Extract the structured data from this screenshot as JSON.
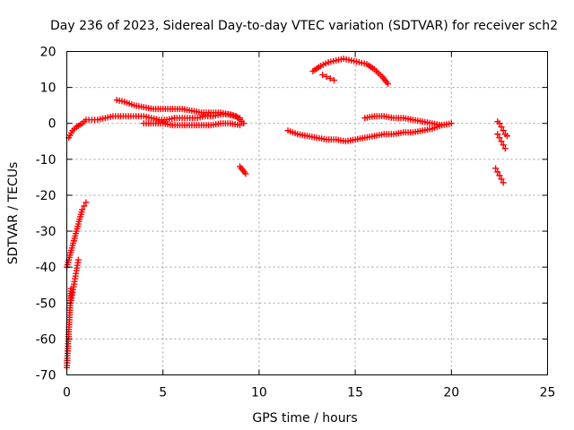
{
  "chart_data": {
    "type": "scatter",
    "title": "Day 236 of 2023, Sidereal Day-to-day VTEC variation (SDTVAR) for receiver sch2",
    "xlabel": "GPS time / hours",
    "ylabel": "SDTVAR / TECUs",
    "xlim": [
      0,
      25
    ],
    "ylim": [
      -70,
      20
    ],
    "xticks": [
      0,
      5,
      10,
      15,
      20,
      25
    ],
    "yticks": [
      -70,
      -60,
      -50,
      -40,
      -30,
      -20,
      -10,
      0,
      10,
      20
    ],
    "xtick_labels": [
      "0",
      "5",
      "10",
      "15",
      "20",
      "25"
    ],
    "ytick_labels": [
      "-70",
      "-60",
      "-50",
      "-40",
      "-30",
      "-20",
      "-10",
      "0",
      "10",
      "20"
    ],
    "grid": true,
    "marker": "+",
    "color": "#ff0000",
    "series": [
      {
        "name": "early-steep-descent",
        "x": [
          0.0,
          0.02,
          0.04,
          0.06,
          0.08,
          0.1,
          0.12,
          0.14,
          0.16,
          0.18,
          0.2,
          0.22
        ],
        "y": [
          -68,
          -66,
          -64,
          -62,
          -60,
          -58,
          -56,
          -54,
          -52,
          -50,
          -48,
          -46
        ]
      },
      {
        "name": "early-rise-a",
        "x": [
          0.0,
          0.1,
          0.2,
          0.3,
          0.4,
          0.5,
          0.6,
          0.7,
          0.8,
          0.9,
          1.0
        ],
        "y": [
          -40,
          -38,
          -36,
          -34,
          -32,
          -30,
          -28,
          -26,
          -24,
          -23,
          -22
        ]
      },
      {
        "name": "early-rise-b",
        "x": [
          0.2,
          0.3,
          0.4,
          0.5,
          0.6
        ],
        "y": [
          -50,
          -47,
          -44,
          -41,
          -38
        ]
      },
      {
        "name": "morning-band",
        "x": [
          0.1,
          0.3,
          0.5,
          0.8,
          1.0,
          1.3,
          1.6,
          2.0,
          2.4,
          2.8,
          3.2,
          3.6,
          4.0,
          4.4,
          4.8,
          5.2,
          5.6,
          6.0,
          6.4,
          6.8,
          7.2,
          7.6,
          8.0,
          8.4,
          8.8,
          9.2
        ],
        "y": [
          -4,
          -2,
          -1,
          0,
          1,
          1,
          1,
          1.5,
          2,
          2,
          2,
          2,
          2,
          1.5,
          1,
          1,
          1.5,
          1.5,
          1.5,
          1.5,
          2,
          2,
          2.5,
          2.5,
          2,
          0
        ]
      },
      {
        "name": "morning-upper",
        "x": [
          2.6,
          3.0,
          3.5,
          4.0,
          4.5,
          5.0,
          5.5,
          6.0,
          6.5,
          7.0,
          7.5,
          8.0,
          8.5,
          9.0
        ],
        "y": [
          6.5,
          6,
          5,
          4.5,
          4,
          4,
          4,
          4,
          3.5,
          3,
          3,
          3,
          2.5,
          1.5
        ]
      },
      {
        "name": "morning-lower",
        "x": [
          4.0,
          4.5,
          5.0,
          5.5,
          6.0,
          6.5,
          7.0,
          7.5,
          8.0,
          8.5,
          9.0
        ],
        "y": [
          0,
          0,
          0,
          -0.5,
          -0.5,
          -0.5,
          -0.5,
          -0.5,
          0,
          0,
          -0.5
        ]
      },
      {
        "name": "isolated-9h",
        "x": [
          9.0,
          9.15,
          9.3
        ],
        "y": [
          -12,
          -13,
          -14
        ]
      },
      {
        "name": "evening-band",
        "x": [
          11.5,
          12.0,
          12.5,
          13.0,
          13.5,
          14.0,
          14.5,
          15.0,
          15.5,
          16.0,
          16.5,
          17.0,
          17.5,
          18.0,
          18.5,
          19.0,
          19.5,
          20.0
        ],
        "y": [
          -2,
          -3,
          -3.5,
          -4,
          -4.5,
          -4.5,
          -5,
          -4.5,
          -4,
          -3.5,
          -3,
          -3,
          -2.5,
          -2.5,
          -2,
          -1.5,
          -0.5,
          0
        ]
      },
      {
        "name": "evening-upper",
        "x": [
          15.5,
          16.0,
          16.5,
          17.0,
          17.5,
          18.0,
          18.5,
          19.0,
          19.5
        ],
        "y": [
          1.5,
          2,
          2,
          1.5,
          1.5,
          1,
          0.5,
          0,
          -0.5
        ]
      },
      {
        "name": "arc",
        "x": [
          12.8,
          13.2,
          13.6,
          14.0,
          14.4,
          14.8,
          15.2,
          15.6,
          16.0,
          16.4,
          16.7
        ],
        "y": [
          14.5,
          16,
          17,
          17.5,
          18,
          17.5,
          17,
          16.5,
          15,
          13,
          11
        ]
      },
      {
        "name": "arc-tail",
        "x": [
          13.3,
          13.5,
          13.7,
          13.9
        ],
        "y": [
          13.5,
          13,
          12.5,
          12
        ]
      },
      {
        "name": "late-a",
        "x": [
          22.4,
          22.5,
          22.6,
          22.7,
          22.8,
          22.9
        ],
        "y": [
          0.5,
          0,
          -1,
          -2,
          -3,
          -3.5
        ]
      },
      {
        "name": "late-b",
        "x": [
          22.4,
          22.5,
          22.6,
          22.7,
          22.8
        ],
        "y": [
          -3,
          -4,
          -5,
          -6,
          -7
        ]
      },
      {
        "name": "late-c",
        "x": [
          22.3,
          22.4,
          22.5,
          22.6,
          22.7
        ],
        "y": [
          -12.5,
          -13.5,
          -14.5,
          -15.5,
          -16.5
        ]
      }
    ]
  }
}
